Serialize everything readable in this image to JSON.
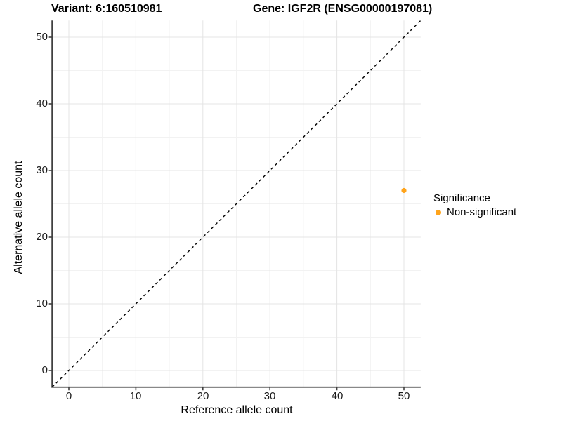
{
  "chart_data": {
    "type": "scatter",
    "titles": {
      "variant": "Variant: 6:160510981",
      "gene": "Gene: IGF2R (ENSG00000197081)"
    },
    "xlabel": "Reference allele count",
    "ylabel": "Alternative allele count",
    "xticks": [
      0,
      10,
      20,
      30,
      40,
      50
    ],
    "yticks": [
      0,
      10,
      20,
      30,
      40,
      50
    ],
    "minor_xticks": [
      5,
      15,
      25,
      35,
      45
    ],
    "minor_yticks": [
      5,
      15,
      25,
      35,
      45
    ],
    "xlim": [
      -2.5,
      52.5
    ],
    "ylim": [
      -2.5,
      52.5
    ],
    "grid": "major+minor",
    "series": [
      {
        "name": "Non-significant",
        "color": "#FFA41B",
        "points": [
          {
            "x": 50,
            "y": 27
          }
        ]
      }
    ],
    "reference_line": {
      "slope": 1,
      "intercept": 0,
      "style": "dashed",
      "color": "#000000"
    },
    "legend_position": "right"
  },
  "legend": {
    "title": "Significance",
    "items": [
      {
        "label": "Non-significant",
        "color": "#FFA41B"
      }
    ]
  },
  "colors": {
    "background": "#FFFFFF",
    "axis_line": "#404040",
    "grid_major": "#e4e4e4",
    "grid_minor": "#f2f2f2",
    "tick_text": "#1a1a1a"
  }
}
